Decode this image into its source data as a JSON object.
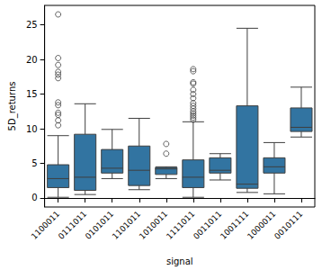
{
  "chart_data": {
    "type": "boxplot",
    "x_label": "signal",
    "y_label": "5D_returns",
    "categories": [
      "1100011",
      "0111011",
      "0101011",
      "1101011",
      "1010011",
      "1111011",
      "0011011",
      "1001111",
      "1000011",
      "0010111"
    ],
    "boxes": [
      [
        0.1,
        1.5,
        2.8,
        4.8,
        9.0
      ],
      [
        0.5,
        1.1,
        3.0,
        9.2,
        13.6
      ],
      [
        2.8,
        3.6,
        4.3,
        7.0,
        9.9
      ],
      [
        1.2,
        1.8,
        4.0,
        7.5,
        11.5
      ],
      [
        2.8,
        3.4,
        4.2,
        4.4,
        4.5
      ],
      [
        0.1,
        1.5,
        3.0,
        5.5,
        11.0
      ],
      [
        2.6,
        3.6,
        4.0,
        5.8,
        6.4
      ],
      [
        0.8,
        1.4,
        2.0,
        13.3,
        24.5
      ],
      [
        0.6,
        3.6,
        4.5,
        5.8,
        8.0
      ],
      [
        8.8,
        9.6,
        10.2,
        13.0,
        16.0
      ]
    ],
    "outliers": [
      [
        10.5,
        11.2,
        12.0,
        12.3,
        13.4,
        13.8,
        17.3,
        17.8,
        18.2,
        19.2,
        20.2,
        26.5
      ],
      [],
      [],
      [],
      [
        6.4,
        7.8
      ],
      [
        11.3,
        11.6,
        11.9,
        12.2,
        12.5,
        12.9,
        13.3,
        13.7,
        14.4,
        15.0,
        15.6,
        16.5,
        16.7,
        18.3,
        18.6
      ],
      [],
      [],
      [],
      []
    ],
    "color": "#3274a1",
    "ylim": [
      -1.3,
      27.8
    ],
    "yticks": [
      0,
      5,
      10,
      15,
      20,
      25
    ],
    "grid": false
  }
}
